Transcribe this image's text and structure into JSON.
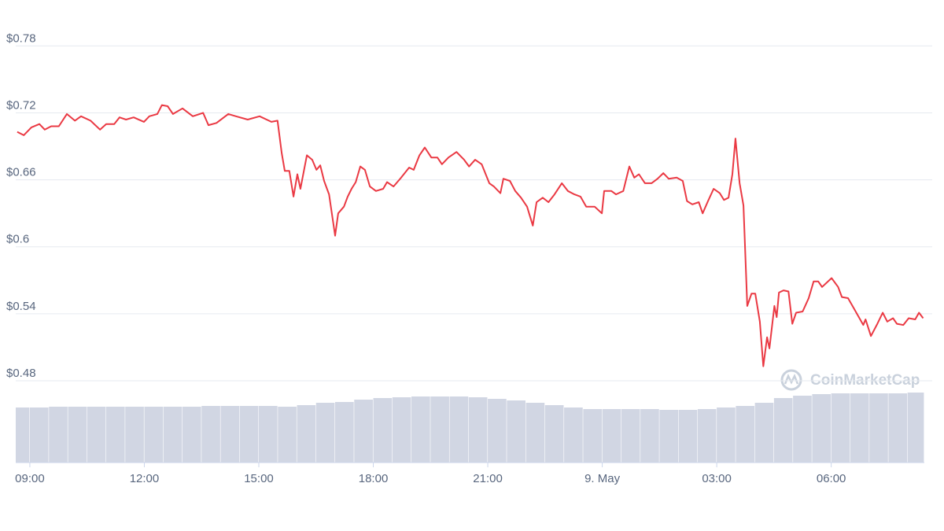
{
  "chart_data": {
    "type": "line",
    "color": "#ea3943",
    "watermark": "CoinMarketCap",
    "xlim": [
      8.63,
      32.44
    ],
    "xticks": [
      {
        "value": 9,
        "label": "09:00"
      },
      {
        "value": 12,
        "label": "12:00"
      },
      {
        "value": 15,
        "label": "15:00"
      },
      {
        "value": 18,
        "label": "18:00"
      },
      {
        "value": 21,
        "label": "21:00"
      },
      {
        "value": 24,
        "label": "9. May"
      },
      {
        "value": 27,
        "label": "03:00"
      },
      {
        "value": 30,
        "label": "06:00"
      }
    ],
    "ylim": [
      0.48,
      0.8
    ],
    "yticks": [
      {
        "value": 0.48,
        "label": "$0.48"
      },
      {
        "value": 0.54,
        "label": "$0.54"
      },
      {
        "value": 0.6,
        "label": "$0.6"
      },
      {
        "value": 0.66,
        "label": "$0.66"
      },
      {
        "value": 0.72,
        "label": "$0.72"
      },
      {
        "value": 0.78,
        "label": "$0.78"
      }
    ],
    "grid": true,
    "x": [
      8.67,
      8.84,
      9.04,
      9.25,
      9.39,
      9.56,
      9.76,
      9.97,
      10.18,
      10.34,
      10.59,
      10.84,
      11.0,
      11.21,
      11.35,
      11.52,
      11.72,
      11.99,
      12.13,
      12.34,
      12.46,
      12.61,
      12.75,
      13.0,
      13.27,
      13.54,
      13.68,
      13.89,
      14.2,
      14.4,
      14.71,
      15.02,
      15.33,
      15.49,
      15.6,
      15.68,
      15.8,
      15.91,
      16.01,
      16.09,
      16.26,
      16.4,
      16.51,
      16.61,
      16.71,
      16.84,
      17.0,
      17.08,
      17.23,
      17.33,
      17.43,
      17.54,
      17.66,
      17.78,
      17.91,
      18.07,
      18.26,
      18.36,
      18.53,
      18.73,
      18.94,
      19.06,
      19.21,
      19.35,
      19.52,
      19.68,
      19.8,
      19.97,
      20.18,
      20.38,
      20.51,
      20.67,
      20.84,
      21.04,
      21.16,
      21.33,
      21.41,
      21.58,
      21.72,
      21.87,
      22.03,
      22.18,
      22.28,
      22.44,
      22.59,
      22.75,
      22.94,
      23.1,
      23.27,
      23.43,
      23.58,
      23.8,
      23.99,
      24.05,
      24.24,
      24.36,
      24.55,
      24.71,
      24.84,
      24.96,
      25.12,
      25.29,
      25.45,
      25.6,
      25.74,
      25.95,
      26.11,
      26.22,
      26.36,
      26.53,
      26.63,
      26.77,
      26.92,
      27.08,
      27.19,
      27.31,
      27.41,
      27.49,
      27.6,
      27.7,
      27.8,
      27.91,
      28.01,
      28.13,
      28.22,
      28.32,
      28.38,
      28.51,
      28.57,
      28.63,
      28.75,
      28.88,
      28.98,
      29.08,
      29.25,
      29.41,
      29.54,
      29.66,
      29.76,
      30.01,
      30.18,
      30.28,
      30.44,
      30.59,
      30.84,
      30.9,
      31.04,
      31.21,
      31.35,
      31.47,
      31.62,
      31.72,
      31.89,
      32.03,
      32.2,
      32.3,
      32.41
    ],
    "values": [
      0.703,
      0.7,
      0.707,
      0.71,
      0.705,
      0.708,
      0.708,
      0.719,
      0.713,
      0.717,
      0.713,
      0.705,
      0.71,
      0.71,
      0.716,
      0.714,
      0.716,
      0.712,
      0.717,
      0.719,
      0.727,
      0.726,
      0.719,
      0.724,
      0.717,
      0.72,
      0.709,
      0.711,
      0.719,
      0.717,
      0.714,
      0.717,
      0.712,
      0.713,
      0.684,
      0.668,
      0.668,
      0.645,
      0.665,
      0.652,
      0.682,
      0.678,
      0.669,
      0.673,
      0.659,
      0.647,
      0.61,
      0.63,
      0.636,
      0.645,
      0.652,
      0.658,
      0.672,
      0.669,
      0.654,
      0.65,
      0.652,
      0.658,
      0.654,
      0.662,
      0.671,
      0.669,
      0.682,
      0.689,
      0.68,
      0.68,
      0.674,
      0.68,
      0.685,
      0.678,
      0.672,
      0.678,
      0.674,
      0.657,
      0.654,
      0.648,
      0.661,
      0.659,
      0.65,
      0.644,
      0.636,
      0.619,
      0.64,
      0.644,
      0.64,
      0.647,
      0.657,
      0.65,
      0.647,
      0.645,
      0.636,
      0.636,
      0.63,
      0.65,
      0.65,
      0.647,
      0.65,
      0.672,
      0.662,
      0.665,
      0.657,
      0.657,
      0.661,
      0.666,
      0.661,
      0.662,
      0.659,
      0.641,
      0.638,
      0.64,
      0.63,
      0.641,
      0.652,
      0.648,
      0.642,
      0.644,
      0.665,
      0.697,
      0.657,
      0.637,
      0.547,
      0.558,
      0.558,
      0.533,
      0.493,
      0.519,
      0.509,
      0.547,
      0.537,
      0.559,
      0.561,
      0.56,
      0.531,
      0.541,
      0.542,
      0.554,
      0.569,
      0.569,
      0.564,
      0.572,
      0.564,
      0.555,
      0.554,
      0.545,
      0.53,
      0.535,
      0.52,
      0.531,
      0.541,
      0.533,
      0.536,
      0.531,
      0.53,
      0.536,
      0.535,
      0.541,
      0.536
    ],
    "volume": {
      "color": "#d1d6e3",
      "lim": [
        0,
        100
      ],
      "x": [
        8.75,
        9.25,
        9.75,
        10.25,
        10.75,
        11.25,
        11.75,
        12.25,
        12.75,
        13.25,
        13.75,
        14.25,
        14.75,
        15.25,
        15.75,
        16.25,
        16.75,
        17.25,
        17.75,
        18.25,
        18.75,
        19.25,
        19.75,
        20.25,
        20.75,
        21.25,
        21.75,
        22.25,
        22.75,
        23.25,
        23.75,
        24.25,
        24.75,
        25.25,
        25.75,
        26.25,
        26.75,
        27.25,
        27.75,
        28.25,
        28.75,
        29.25,
        29.75,
        30.25,
        30.75,
        31.25,
        31.75,
        32.25
      ],
      "values": [
        70,
        70,
        71,
        71,
        71,
        71,
        71,
        71,
        71,
        71,
        72,
        72,
        72,
        72,
        71,
        73,
        76,
        77,
        80,
        82,
        83,
        84,
        84,
        84,
        83,
        81,
        79,
        76,
        73,
        70,
        68,
        68,
        68,
        68,
        67,
        67,
        68,
        70,
        72,
        76,
        82,
        85,
        87,
        88,
        88,
        88,
        88,
        89
      ]
    }
  }
}
